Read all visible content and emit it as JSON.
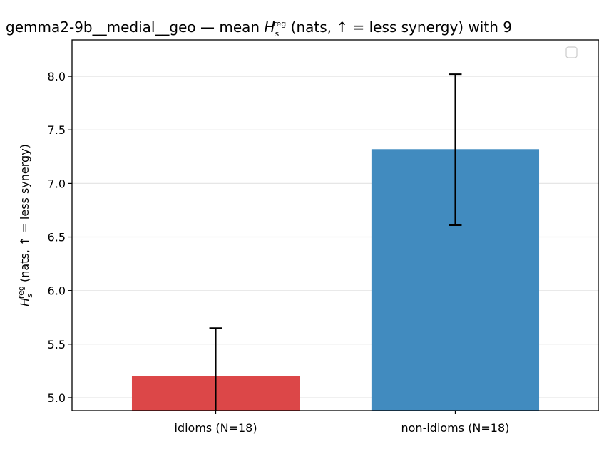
{
  "chart_data": {
    "type": "bar",
    "title": {
      "prefix": "gemma2-9b__medial__geo — mean ",
      "symbol": "H",
      "sub": "s",
      "sup": "reg",
      "suffix": " (nats, ↑ = less synergy) with 9"
    },
    "ylabel": {
      "symbol": "H",
      "sub": "s",
      "sup": "reg",
      "suffix": " (nats, ↑ = less synergy)"
    },
    "categories": [
      "idioms (N=18)",
      "non-idioms (N=18)"
    ],
    "values": [
      5.2,
      7.32
    ],
    "errors_upper": [
      5.65,
      8.02
    ],
    "errors_lower": [
      4.75,
      6.61
    ],
    "colors": [
      "#dc4748",
      "#418bbf"
    ],
    "ylim": [
      4.88,
      8.34
    ],
    "yticks": [
      5.0,
      5.5,
      6.0,
      6.5,
      7.0,
      7.5,
      8.0
    ],
    "ytick_labels": [
      "5.0",
      "5.5",
      "6.0",
      "6.5",
      "7.0",
      "7.5",
      "8.0"
    ],
    "grid": "y",
    "legend": "top-right (empty)"
  }
}
